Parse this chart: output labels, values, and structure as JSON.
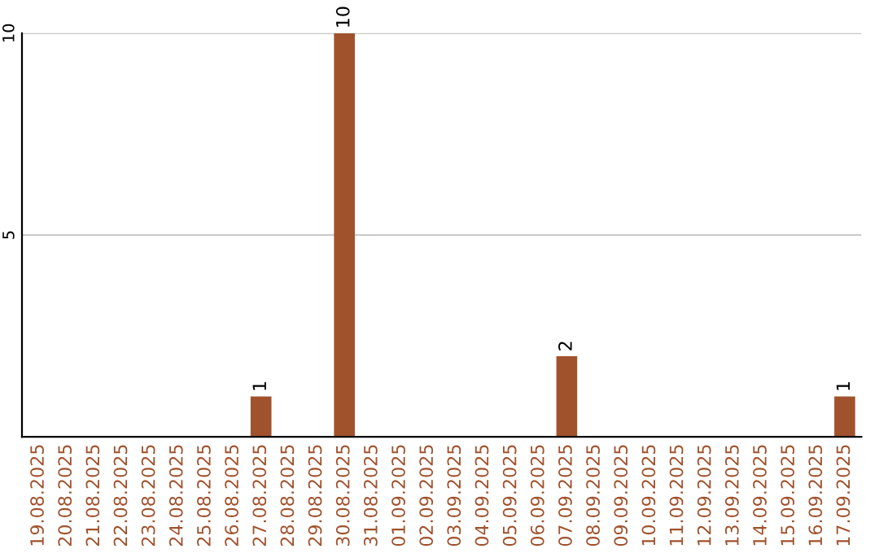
{
  "chart_data": {
    "type": "bar",
    "categories": [
      "19.08.2025",
      "20.08.2025",
      "21.08.2025",
      "22.08.2025",
      "23.08.2025",
      "24.08.2025",
      "25.08.2025",
      "26.08.2025",
      "27.08.2025",
      "28.08.2025",
      "29.08.2025",
      "30.08.2025",
      "31.08.2025",
      "01.09.2025",
      "02.09.2025",
      "03.09.2025",
      "04.09.2025",
      "05.09.2025",
      "06.09.2025",
      "07.09.2025",
      "08.09.2025",
      "09.09.2025",
      "10.09.2025",
      "11.09.2025",
      "12.09.2025",
      "13.09.2025",
      "14.09.2025",
      "15.09.2025",
      "16.09.2025",
      "17.09.2025"
    ],
    "values": [
      0,
      0,
      0,
      0,
      0,
      0,
      0,
      0,
      1,
      0,
      0,
      10,
      0,
      0,
      0,
      0,
      0,
      0,
      0,
      2,
      0,
      0,
      0,
      0,
      0,
      0,
      0,
      0,
      0,
      1
    ],
    "value_labels": [
      null,
      null,
      null,
      null,
      null,
      null,
      null,
      null,
      "1",
      null,
      null,
      "10",
      null,
      null,
      null,
      null,
      null,
      null,
      null,
      "2",
      null,
      null,
      null,
      null,
      null,
      null,
      null,
      null,
      null,
      "1"
    ],
    "color": "#a0522d",
    "ylim": [
      0,
      10
    ],
    "yticks": [
      5,
      10
    ],
    "grid": "y"
  }
}
